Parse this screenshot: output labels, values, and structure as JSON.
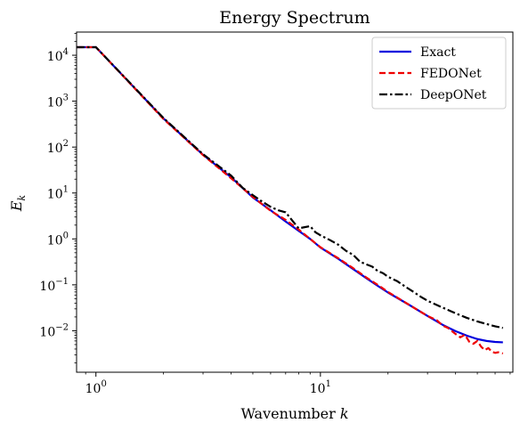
{
  "chart_data": {
    "type": "line",
    "title": "Energy Spectrum",
    "xlabel_text": "Wavenumber ",
    "xlabel_var": "k",
    "ylabel_var": "E",
    "ylabel_sub": "k",
    "x_scale": "log",
    "y_scale": "log",
    "xlim": [
      0.82,
      72
    ],
    "ylim": [
      0.00125,
      32000
    ],
    "grid": false,
    "legend_position": "top-right",
    "x_ticks": [
      {
        "value": 1,
        "base": "10",
        "exp": "0"
      },
      {
        "value": 10,
        "base": "10",
        "exp": "1"
      }
    ],
    "y_ticks": [
      {
        "value": 0.01,
        "base": "10",
        "exp": "−2"
      },
      {
        "value": 0.1,
        "base": "10",
        "exp": "−1"
      },
      {
        "value": 1,
        "base": "10",
        "exp": "0"
      },
      {
        "value": 10,
        "base": "10",
        "exp": "1"
      },
      {
        "value": 100,
        "base": "10",
        "exp": "2"
      },
      {
        "value": 1000,
        "base": "10",
        "exp": "3"
      },
      {
        "value": 10000,
        "base": "10",
        "exp": "4"
      }
    ],
    "series": [
      {
        "name": "Exact",
        "color": "#0000dd",
        "dash": "solid",
        "points": [
          [
            0.82,
            15000
          ],
          [
            1,
            15000
          ],
          [
            2,
            420
          ],
          [
            3,
            68
          ],
          [
            4,
            22
          ],
          [
            5,
            8
          ],
          [
            6,
            4.2
          ],
          [
            7,
            2.4
          ],
          [
            8,
            1.5
          ],
          [
            9,
            1.0
          ],
          [
            10,
            0.65
          ],
          [
            12,
            0.37
          ],
          [
            14,
            0.22
          ],
          [
            16,
            0.14
          ],
          [
            18,
            0.095
          ],
          [
            20,
            0.068
          ],
          [
            25,
            0.036
          ],
          [
            30,
            0.021
          ],
          [
            35,
            0.0135
          ],
          [
            40,
            0.0098
          ],
          [
            45,
            0.0078
          ],
          [
            50,
            0.0066
          ],
          [
            55,
            0.006
          ],
          [
            60,
            0.0057
          ],
          [
            65,
            0.0056
          ]
        ]
      },
      {
        "name": "FEDONet",
        "color": "#ee0000",
        "dash": "dashed",
        "points": [
          [
            0.82,
            15000
          ],
          [
            1,
            15000
          ],
          [
            2,
            410
          ],
          [
            3,
            67
          ],
          [
            4,
            21
          ],
          [
            5,
            8.2
          ],
          [
            6,
            4.1
          ],
          [
            7,
            2.6
          ],
          [
            8,
            1.6
          ],
          [
            9,
            1.0
          ],
          [
            10,
            0.66
          ],
          [
            12,
            0.38
          ],
          [
            14,
            0.23
          ],
          [
            16,
            0.145
          ],
          [
            18,
            0.1
          ],
          [
            20,
            0.07
          ],
          [
            25,
            0.036
          ],
          [
            30,
            0.021
          ],
          [
            33,
            0.017
          ],
          [
            35,
            0.013
          ],
          [
            37,
            0.0115
          ],
          [
            40,
            0.0085
          ],
          [
            42,
            0.0072
          ],
          [
            44,
            0.0082
          ],
          [
            46,
            0.0058
          ],
          [
            48,
            0.0052
          ],
          [
            50,
            0.006
          ],
          [
            52,
            0.0045
          ],
          [
            54,
            0.0038
          ],
          [
            56,
            0.0042
          ],
          [
            58,
            0.0035
          ],
          [
            60,
            0.0033
          ],
          [
            62,
            0.0034
          ],
          [
            65,
            0.0032
          ]
        ]
      },
      {
        "name": "DeepONet",
        "color": "#000000",
        "dash": "dashdot",
        "points": [
          [
            0.82,
            15000
          ],
          [
            1,
            15000
          ],
          [
            2,
            430
          ],
          [
            3,
            70
          ],
          [
            4,
            24
          ],
          [
            4.5,
            13
          ],
          [
            5,
            9
          ],
          [
            5.5,
            6.5
          ],
          [
            6,
            5
          ],
          [
            6.5,
            4.2
          ],
          [
            7,
            3.8
          ],
          [
            7.5,
            2.5
          ],
          [
            8,
            1.7
          ],
          [
            8.5,
            1.8
          ],
          [
            9,
            1.9
          ],
          [
            9.5,
            1.4
          ],
          [
            10,
            1.2
          ],
          [
            11,
            0.95
          ],
          [
            12,
            0.75
          ],
          [
            13,
            0.55
          ],
          [
            14,
            0.45
          ],
          [
            15,
            0.32
          ],
          [
            16,
            0.28
          ],
          [
            17,
            0.25
          ],
          [
            18,
            0.2
          ],
          [
            19,
            0.18
          ],
          [
            20,
            0.15
          ],
          [
            22,
            0.12
          ],
          [
            24,
            0.09
          ],
          [
            26,
            0.07
          ],
          [
            28,
            0.055
          ],
          [
            30,
            0.045
          ],
          [
            35,
            0.032
          ],
          [
            40,
            0.024
          ],
          [
            45,
            0.019
          ],
          [
            50,
            0.016
          ],
          [
            55,
            0.014
          ],
          [
            60,
            0.0125
          ],
          [
            65,
            0.0115
          ]
        ]
      }
    ]
  }
}
